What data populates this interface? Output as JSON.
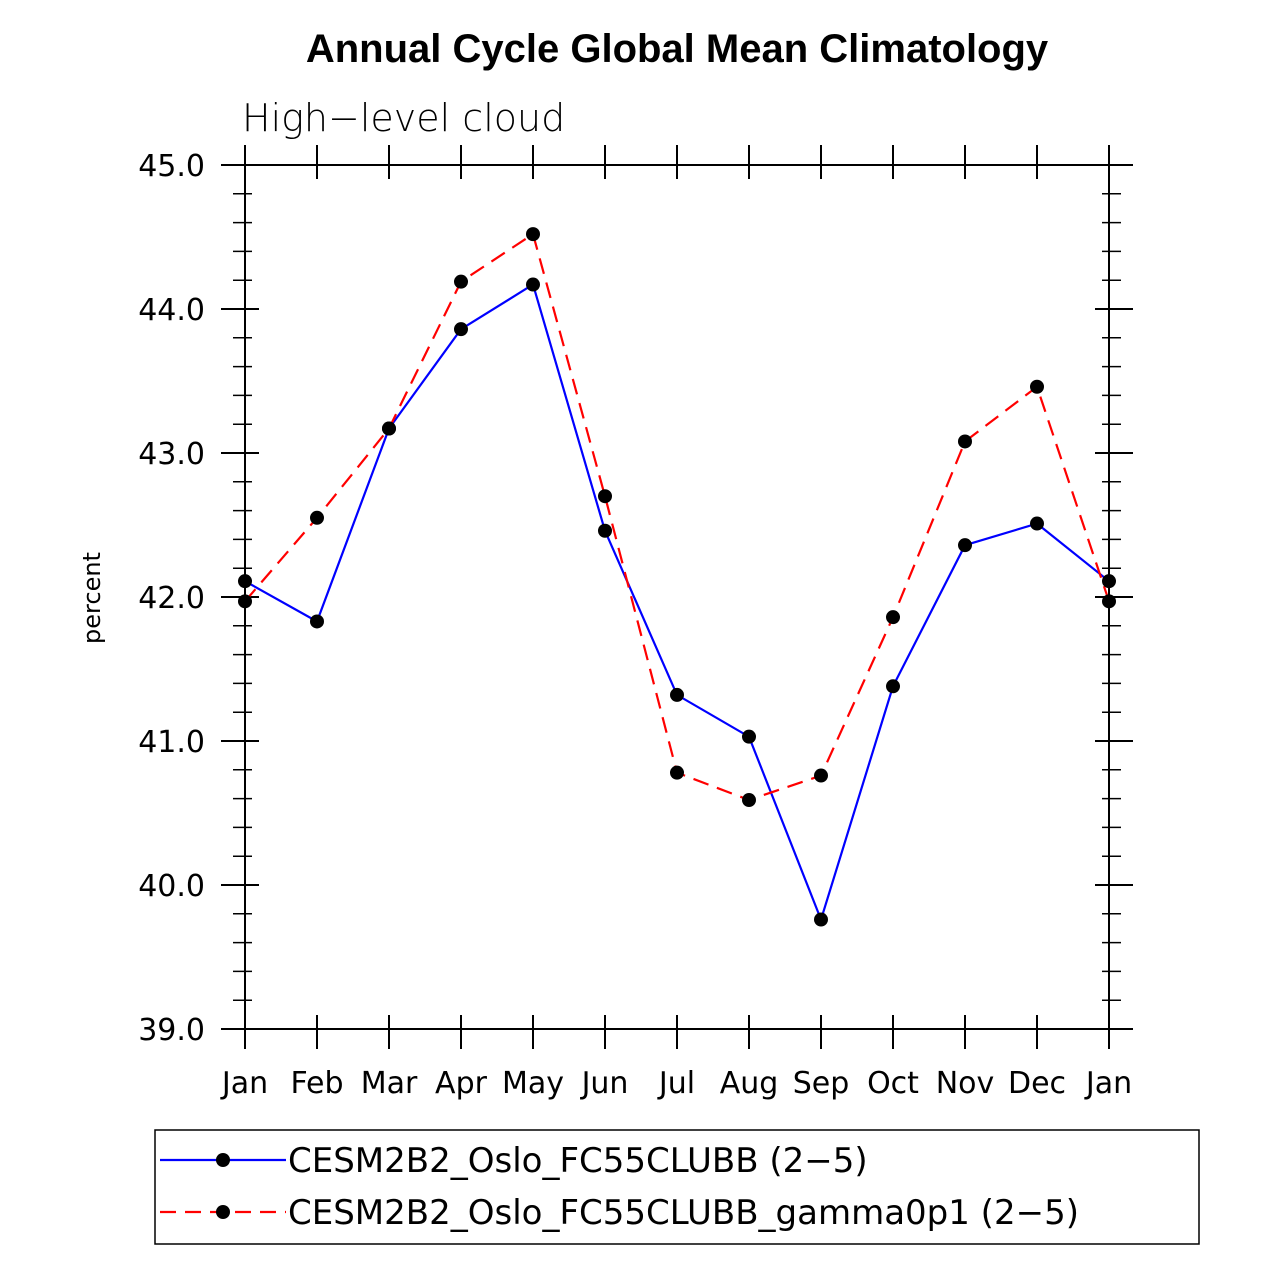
{
  "chart_data": {
    "type": "line",
    "title": "Annual Cycle Global Mean Climatology",
    "subtitle": "High−level cloud",
    "xlabel": "",
    "ylabel": "percent",
    "categories": [
      "Jan",
      "Feb",
      "Mar",
      "Apr",
      "May",
      "Jun",
      "Jul",
      "Aug",
      "Sep",
      "Oct",
      "Nov",
      "Dec",
      "Jan"
    ],
    "ylim": [
      39.0,
      45.0
    ],
    "yticks": [
      "39.0",
      "40.0",
      "41.0",
      "42.0",
      "43.0",
      "44.0",
      "45.0"
    ],
    "grid": false,
    "legend_position": "bottom",
    "series": [
      {
        "name": "CESM2B2_Oslo_FC55CLUBB (2−5)",
        "color": "#0000ff",
        "dash": "solid",
        "marker": "filled-circle",
        "values": [
          42.11,
          41.83,
          43.17,
          43.86,
          44.17,
          42.46,
          41.32,
          41.03,
          39.76,
          41.38,
          42.36,
          42.51,
          42.11
        ]
      },
      {
        "name": "CESM2B2_Oslo_FC55CLUBB_gamma0p1 (2−5)",
        "color": "#ff0000",
        "dash": "dashed",
        "marker": "filled-circle",
        "values": [
          41.97,
          42.55,
          43.17,
          44.19,
          44.52,
          42.7,
          40.78,
          40.59,
          40.76,
          41.86,
          43.08,
          43.46,
          41.97
        ]
      }
    ]
  }
}
